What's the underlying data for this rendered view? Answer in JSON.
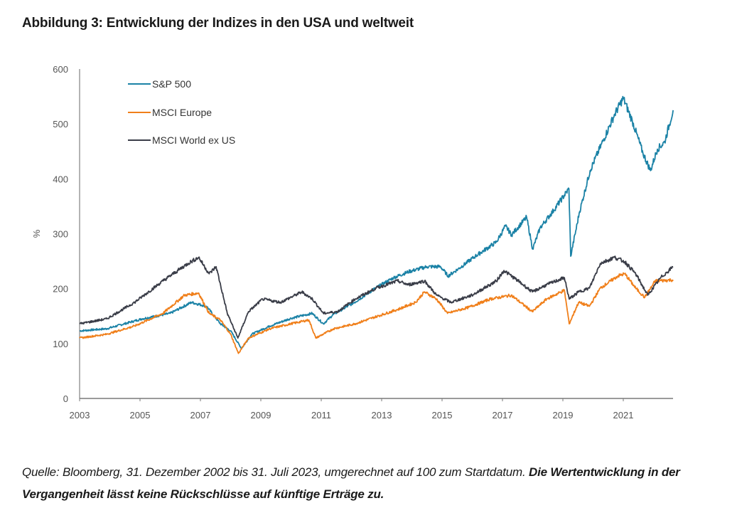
{
  "header": {
    "title": "Abbildung 3: Entwicklung der Indizes in den USA und weltweit"
  },
  "footer": {
    "source_text": "Quelle: Bloomberg, 31. Dezember 2002 bis 31. Juli 2023, umgerechnet auf 100 zum Startdatum. ",
    "disclaimer_text": "Die Wertentwicklung in der Vergangenheit lässt keine Rückschlüsse auf künftige Erträge zu."
  },
  "chart_data": {
    "type": "line",
    "title": "",
    "xlabel": "",
    "ylabel": "%",
    "xlim": [
      2003,
      2022.65
    ],
    "ylim": [
      0,
      600
    ],
    "x_ticks": [
      "2003",
      "2005",
      "2007",
      "2009",
      "2011",
      "2013",
      "2015",
      "2017",
      "2019",
      "2021"
    ],
    "x_tick_values": [
      2003,
      2005,
      2007,
      2009,
      2011,
      2013,
      2015,
      2017,
      2019,
      2021
    ],
    "y_ticks": [
      "0",
      "100",
      "200",
      "300",
      "400",
      "500",
      "600"
    ],
    "y_tick_values": [
      0,
      100,
      200,
      300,
      400,
      500,
      600
    ],
    "grid": false,
    "legend_position": "top-left",
    "series": [
      {
        "name": "S&P 500",
        "color": "#1b82a6",
        "x": [
          2003.0,
          2003.9,
          2005.07,
          2006.0,
          2006.7,
          2007.2,
          2007.66,
          2008.0,
          2008.36,
          2008.7,
          2009.3,
          2010.0,
          2010.7,
          2011.07,
          2011.4,
          2012.1,
          2012.8,
          2013.4,
          2013.9,
          2014.5,
          2014.95,
          2015.2,
          2015.54,
          2016.1,
          2016.8,
          2017.1,
          2017.3,
          2017.8,
          2018.0,
          2018.25,
          2018.7,
          2019.2,
          2019.26,
          2019.54,
          2019.9,
          2020.36,
          2020.72,
          2021.0,
          2021.3,
          2021.65,
          2021.9,
          2022.13,
          2022.37,
          2022.65
        ],
        "values": [
          123,
          127,
          145,
          155,
          175,
          168,
          136,
          123,
          91,
          117,
          132,
          146,
          155,
          136,
          153,
          175,
          201,
          220,
          231,
          240,
          240,
          223,
          236,
          259,
          285,
          314,
          298,
          330,
          272,
          311,
          343,
          382,
          259,
          337,
          415,
          473,
          518,
          547,
          505,
          447,
          415,
          454,
          467,
          525
        ]
      },
      {
        "name": "MSCI Europe",
        "color": "#f07f1a",
        "x": [
          2003.0,
          2003.9,
          2004.82,
          2005.76,
          2006.47,
          2006.94,
          2007.29,
          2007.66,
          2008.0,
          2008.26,
          2008.59,
          2009.3,
          2010.0,
          2010.59,
          2010.82,
          2011.41,
          2012.12,
          2012.82,
          2013.53,
          2014.12,
          2014.42,
          2014.82,
          2015.18,
          2015.88,
          2016.59,
          2017.29,
          2017.99,
          2018.46,
          2019.05,
          2019.21,
          2019.52,
          2019.88,
          2020.24,
          2020.82,
          2021.05,
          2021.41,
          2021.71,
          2022.06,
          2022.65
        ],
        "values": [
          110,
          117,
          132,
          155,
          188,
          192,
          155,
          143,
          117,
          82,
          110,
          127,
          136,
          143,
          110,
          127,
          136,
          149,
          162,
          175,
          194,
          181,
          155,
          166,
          181,
          188,
          158,
          181,
          197,
          136,
          175,
          168,
          201,
          223,
          227,
          201,
          184,
          214,
          216
        ]
      },
      {
        "name": "MSCI World ex US",
        "color": "#3a3d48",
        "x": [
          2003.0,
          2003.9,
          2004.82,
          2005.76,
          2006.59,
          2006.94,
          2007.29,
          2007.52,
          2007.89,
          2008.24,
          2008.59,
          2009.06,
          2009.65,
          2010.36,
          2010.71,
          2011.07,
          2011.54,
          2012.12,
          2012.82,
          2013.53,
          2013.88,
          2014.42,
          2014.82,
          2015.29,
          2015.99,
          2016.8,
          2017.05,
          2017.52,
          2017.99,
          2018.46,
          2019.05,
          2019.21,
          2019.52,
          2019.88,
          2020.24,
          2020.71,
          2021.05,
          2021.41,
          2021.81,
          2022.24,
          2022.65
        ],
        "values": [
          136,
          145,
          175,
          214,
          246,
          257,
          227,
          240,
          155,
          110,
          158,
          181,
          175,
          194,
          181,
          155,
          158,
          181,
          201,
          214,
          207,
          214,
          188,
          175,
          188,
          214,
          233,
          214,
          194,
          207,
          220,
          181,
          194,
          201,
          246,
          257,
          249,
          227,
          188,
          220,
          240
        ]
      }
    ]
  }
}
